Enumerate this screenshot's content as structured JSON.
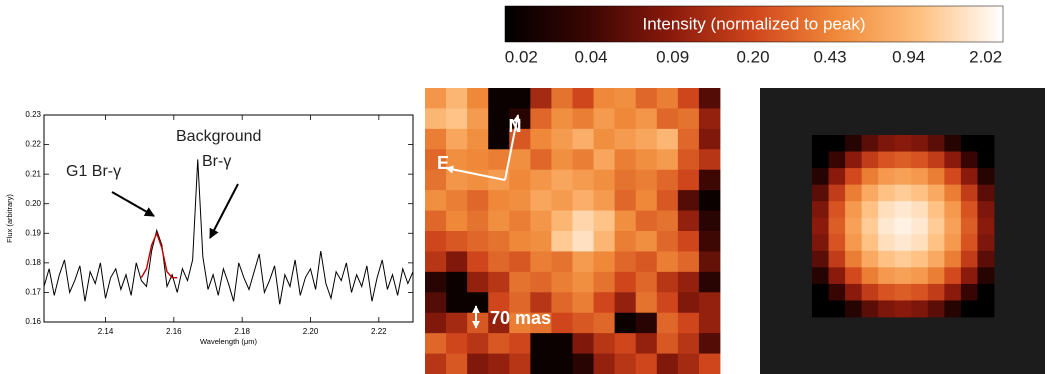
{
  "chart_data": [
    {
      "type": "line",
      "xlabel": "Wavelength (μm)",
      "ylabel": "Flux (arbitrary)",
      "xlim": [
        2.122,
        2.23
      ],
      "ylim": [
        0.16,
        0.23
      ],
      "xticks": [
        2.14,
        2.16,
        2.18,
        {
          "value": 2.2,
          "label": "2.20"
        },
        2.22
      ],
      "yticks": [
        0.16,
        0.17,
        0.18,
        0.19,
        {
          "value": 0.2,
          "label": "0.20"
        },
        0.21,
        0.22,
        0.23
      ],
      "annotations": [
        "G1 Br-γ",
        "Background",
        "Br-γ"
      ],
      "series": [
        {
          "color": "#000000",
          "x": [
            2.122,
            2.1235,
            2.125,
            2.1265,
            2.128,
            2.1295,
            2.131,
            2.1325,
            2.134,
            2.1355,
            2.137,
            2.1385,
            2.14,
            2.1415,
            2.143,
            2.1445,
            2.146,
            2.1475,
            2.149,
            2.1505,
            2.152,
            2.1535,
            2.155,
            2.1565,
            2.158,
            2.1595,
            2.161,
            2.1625,
            2.164,
            2.1655,
            2.167,
            2.1685,
            2.17,
            2.1715,
            2.173,
            2.1745,
            2.176,
            2.1775,
            2.179,
            2.1805,
            2.182,
            2.1835,
            2.185,
            2.1865,
            2.188,
            2.1895,
            2.191,
            2.1925,
            2.194,
            2.1955,
            2.197,
            2.1985,
            2.2,
            2.2015,
            2.203,
            2.2045,
            2.206,
            2.2075,
            2.209,
            2.2105,
            2.212,
            2.2135,
            2.215,
            2.2165,
            2.218,
            2.2195,
            2.221,
            2.2225,
            2.224,
            2.2255,
            2.227,
            2.2285,
            2.23
          ],
          "values": [
            0.172,
            0.178,
            0.169,
            0.176,
            0.181,
            0.17,
            0.174,
            0.179,
            0.167,
            0.177,
            0.173,
            0.18,
            0.168,
            0.175,
            0.178,
            0.171,
            0.176,
            0.169,
            0.18,
            0.174,
            0.172,
            0.184,
            0.191,
            0.186,
            0.172,
            0.176,
            0.17,
            0.178,
            0.174,
            0.181,
            0.215,
            0.182,
            0.171,
            0.176,
            0.169,
            0.178,
            0.173,
            0.167,
            0.18,
            0.175,
            0.171,
            0.177,
            0.183,
            0.17,
            0.174,
            0.179,
            0.166,
            0.176,
            0.172,
            0.181,
            0.169,
            0.175,
            0.178,
            0.171,
            0.184,
            0.173,
            0.168,
            0.177,
            0.174,
            0.18,
            0.17,
            0.176,
            0.172,
            0.179,
            0.167,
            0.175,
            0.181,
            0.171,
            0.176,
            0.169,
            0.178,
            0.173,
            0.177
          ]
        },
        {
          "color": "#c00000",
          "x": [
            2.1505,
            2.152,
            2.1535,
            2.155,
            2.1565,
            2.158,
            2.1595,
            2.161
          ],
          "values": [
            0.175,
            0.178,
            0.186,
            0.19,
            0.185,
            0.177,
            0.175,
            0.175
          ]
        }
      ]
    },
    {
      "type": "heatmap",
      "annotations": [
        "N",
        "E",
        "70 mas"
      ],
      "colorbar": {
        "title": "Intensity (normalized to peak)",
        "log_scale": true,
        "zlim": [
          0.017,
          2.4
        ],
        "colormap": [
          "#000000",
          "#3a0603",
          "#8a1a0c",
          "#d0461c",
          "#f08a3a",
          "#ffc080",
          "#ffffff"
        ],
        "ticks": [
          0.02,
          0.04,
          0.09,
          {
            "value": 0.2,
            "label": "0.20"
          },
          0.43,
          0.94,
          2.02
        ]
      },
      "values": [
        [
          0.55,
          0.9,
          0.45,
          0.02,
          0.02,
          0.12,
          0.35,
          0.2,
          0.45,
          0.5,
          0.3,
          0.4,
          0.2,
          0.05
        ],
        [
          0.9,
          1.1,
          0.6,
          0.02,
          0.03,
          0.3,
          0.5,
          0.4,
          0.6,
          0.45,
          0.55,
          0.3,
          0.35,
          0.1
        ],
        [
          0.4,
          0.7,
          0.5,
          0.02,
          0.25,
          0.45,
          0.6,
          0.8,
          0.5,
          0.6,
          0.7,
          0.9,
          0.3,
          0.08
        ],
        [
          0.3,
          0.5,
          0.45,
          0.4,
          0.5,
          0.3,
          0.5,
          0.4,
          0.7,
          0.4,
          0.5,
          0.6,
          0.25,
          0.15
        ],
        [
          0.35,
          0.55,
          0.5,
          0.6,
          0.45,
          0.55,
          0.7,
          0.6,
          0.5,
          0.35,
          0.4,
          0.3,
          0.2,
          0.04
        ],
        [
          0.5,
          0.4,
          0.3,
          0.45,
          0.5,
          0.7,
          0.6,
          0.8,
          0.6,
          0.3,
          0.45,
          0.25,
          0.05,
          0.02
        ],
        [
          0.3,
          0.45,
          0.35,
          0.5,
          0.4,
          0.55,
          0.9,
          1.4,
          1.1,
          0.5,
          0.3,
          0.35,
          0.1,
          0.03
        ],
        [
          0.2,
          0.25,
          0.3,
          0.35,
          0.45,
          0.5,
          1.2,
          1.6,
          0.9,
          0.4,
          0.5,
          0.3,
          0.2,
          0.04
        ],
        [
          0.15,
          0.08,
          0.2,
          0.3,
          0.25,
          0.4,
          0.35,
          0.6,
          0.45,
          0.3,
          0.25,
          0.4,
          0.3,
          0.06
        ],
        [
          0.03,
          0.02,
          0.1,
          0.15,
          0.35,
          0.3,
          0.4,
          0.5,
          0.35,
          0.2,
          0.3,
          0.15,
          0.1,
          0.03
        ],
        [
          0.05,
          0.02,
          0.02,
          0.2,
          0.3,
          0.15,
          0.3,
          0.4,
          0.2,
          0.1,
          0.35,
          0.2,
          0.08,
          0.1
        ],
        [
          0.08,
          0.12,
          0.25,
          0.1,
          0.4,
          0.35,
          0.2,
          0.25,
          0.3,
          0.02,
          0.03,
          0.3,
          0.2,
          0.1
        ],
        [
          0.3,
          0.2,
          0.15,
          0.25,
          0.2,
          0.02,
          0.02,
          0.08,
          0.15,
          0.2,
          0.1,
          0.25,
          0.15,
          0.05
        ],
        [
          0.15,
          0.25,
          0.08,
          0.1,
          0.15,
          0.02,
          0.02,
          0.03,
          0.1,
          0.15,
          0.2,
          0.08,
          0.12,
          0.2
        ]
      ]
    },
    {
      "type": "heatmap",
      "values": [
        [
          0.004,
          0.012,
          0.029,
          0.054,
          0.078,
          0.089,
          0.078,
          0.054,
          0.029,
          0.012,
          0.004
        ],
        [
          0.012,
          0.037,
          0.089,
          0.17,
          0.24,
          0.27,
          0.24,
          0.17,
          0.089,
          0.037,
          0.012
        ],
        [
          0.029,
          0.089,
          0.21,
          0.4,
          0.58,
          0.66,
          0.58,
          0.4,
          0.21,
          0.089,
          0.029
        ],
        [
          0.054,
          0.17,
          0.4,
          0.74,
          1.08,
          1.23,
          1.08,
          0.74,
          0.4,
          0.17,
          0.054
        ],
        [
          0.078,
          0.24,
          0.58,
          1.08,
          1.57,
          1.78,
          1.57,
          1.08,
          0.58,
          0.24,
          0.078
        ],
        [
          0.089,
          0.27,
          0.66,
          1.23,
          1.78,
          2.02,
          1.78,
          1.23,
          0.66,
          0.27,
          0.089
        ],
        [
          0.078,
          0.24,
          0.58,
          1.08,
          1.57,
          1.78,
          1.57,
          1.08,
          0.58,
          0.24,
          0.078
        ],
        [
          0.054,
          0.17,
          0.4,
          0.74,
          1.08,
          1.23,
          1.08,
          0.74,
          0.4,
          0.17,
          0.054
        ],
        [
          0.029,
          0.089,
          0.21,
          0.4,
          0.58,
          0.66,
          0.58,
          0.4,
          0.21,
          0.089,
          0.029
        ],
        [
          0.012,
          0.037,
          0.089,
          0.17,
          0.24,
          0.27,
          0.24,
          0.17,
          0.089,
          0.037,
          0.012
        ],
        [
          0.004,
          0.012,
          0.029,
          0.054,
          0.078,
          0.089,
          0.078,
          0.054,
          0.029,
          0.012,
          0.004
        ]
      ]
    }
  ]
}
